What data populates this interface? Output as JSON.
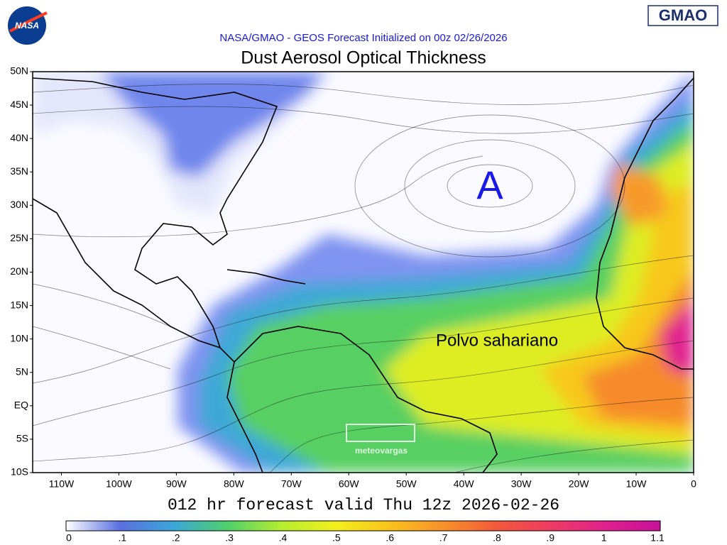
{
  "logos": {
    "nasa": "NASA",
    "gmao": "GMAO"
  },
  "header": {
    "subtitle": "NASA/GMAO - GEOS Forecast Initialized on 00z 02/26/2026",
    "title": "Dust Aerosol Optical Thickness"
  },
  "map": {
    "lat_labels": [
      "50N",
      "45N",
      "40N",
      "35N",
      "30N",
      "25N",
      "20N",
      "15N",
      "10N",
      "5N",
      "EQ",
      "5S",
      "10S"
    ],
    "lon_labels": [
      "110W",
      "100W",
      "90W",
      "80W",
      "70W",
      "60W",
      "50W",
      "40W",
      "30W",
      "20W",
      "10W",
      "0"
    ],
    "annotations": {
      "high": "A",
      "dust": "Polvo sahariano"
    },
    "watermark": "meteovargas"
  },
  "footer": "012 hr forecast valid Thu 12z 2026-02-26",
  "colorbar": {
    "labels": [
      "0",
      ".1",
      ".2",
      ".3",
      ".4",
      ".5",
      ".6",
      ".7",
      ".8",
      ".9",
      "1",
      "1.1"
    ],
    "colors": [
      "#ffffff",
      "#5a6fe0",
      "#3aa7d8",
      "#4fd06a",
      "#b6ee2e",
      "#f2ef1c",
      "#f9c21c",
      "#f8902a",
      "#f2583a",
      "#ef3a64",
      "#e0208e",
      "#c8109a"
    ]
  }
}
